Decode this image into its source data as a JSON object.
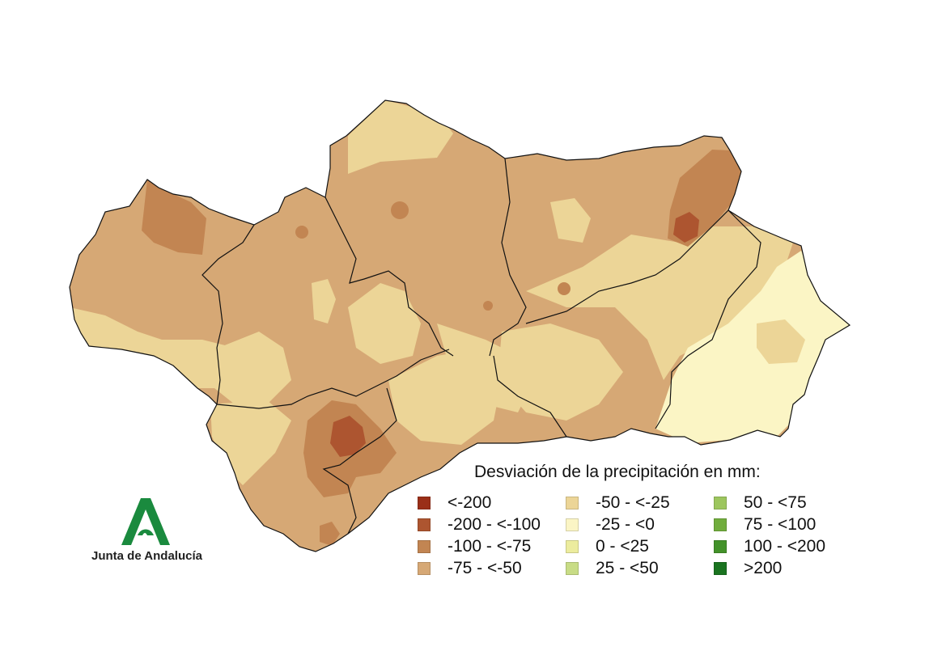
{
  "legend": {
    "title": "Desviación de la precipitación en mm:",
    "items": [
      {
        "label": "<-200",
        "color": "#9a2f18"
      },
      {
        "label": "-200 - <-100",
        "color": "#ad5530"
      },
      {
        "label": "-100 - <-75",
        "color": "#c28552"
      },
      {
        "label": "-75 - <-50",
        "color": "#d6a875"
      },
      {
        "label": "-50 - <-25",
        "color": "#ecd597"
      },
      {
        "label": "-25 - <0",
        "color": "#fbf5c5"
      },
      {
        "label": "0 - <25",
        "color": "#ecec9e"
      },
      {
        "label": "25 - <50",
        "color": "#c8dc86"
      },
      {
        "label": "50 - <75",
        "color": "#9dc65e"
      },
      {
        "label": "75 - <100",
        "color": "#71ad3d"
      },
      {
        "label": "100 - <200",
        "color": "#43922a"
      },
      {
        "label": ">200",
        "color": "#1a7420"
      }
    ]
  },
  "logo": {
    "text": "Junta de Andalucía",
    "color": "#1a8a3e"
  }
}
